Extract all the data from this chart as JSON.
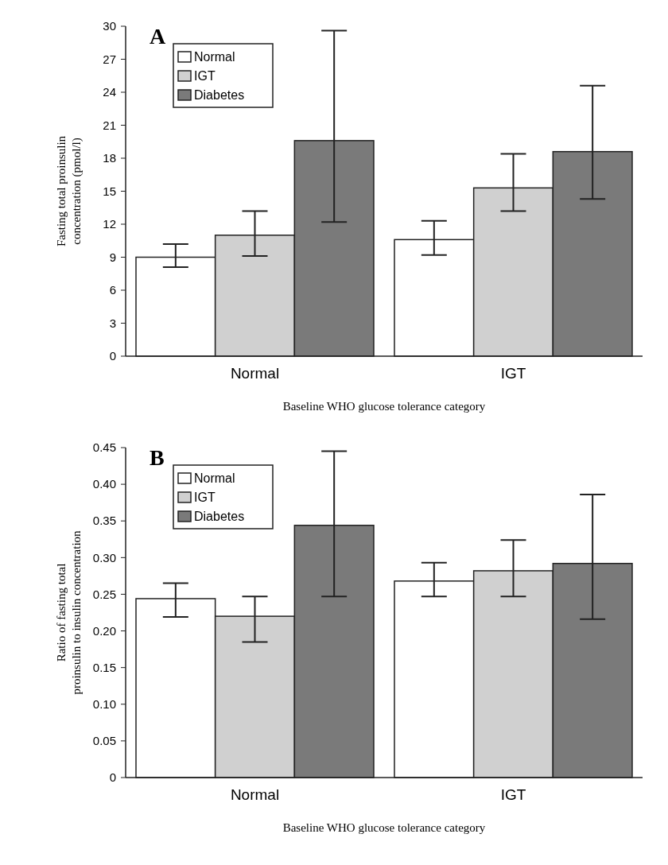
{
  "chart_data": [
    {
      "type": "bar",
      "annotations": [
        "A"
      ],
      "xlabel": "Baseline WHO glucose tolerance category",
      "ylabel": "Fasting total proinsulin concentration (pmol/l)",
      "categories": [
        "Normal",
        "IGT"
      ],
      "ylim": [
        0,
        30
      ],
      "yticks": [
        0,
        3,
        6,
        9,
        12,
        15,
        18,
        21,
        24,
        27,
        30
      ],
      "grid": false,
      "legend": "top left",
      "series": [
        {
          "name": "Normal",
          "color": "#ffffff",
          "values": [
            9.0,
            10.6
          ],
          "errors": [
            [
              8.1,
              10.2
            ],
            [
              9.2,
              12.3
            ]
          ]
        },
        {
          "name": "IGT",
          "color": "#d0d0d0",
          "values": [
            11.0,
            15.3
          ],
          "errors": [
            [
              9.1,
              13.2
            ],
            [
              13.2,
              18.4
            ]
          ]
        },
        {
          "name": "Diabetes",
          "color": "#7a7a7a",
          "values": [
            19.6,
            18.6
          ],
          "errors": [
            [
              12.2,
              29.6
            ],
            [
              14.3,
              24.6
            ]
          ]
        }
      ]
    },
    {
      "type": "bar",
      "annotations": [
        "B"
      ],
      "xlabel": "Baseline WHO glucose tolerance category",
      "ylabel": "Ratio of fasting total proinsulin to insulin concentration",
      "categories": [
        "Normal",
        "IGT"
      ],
      "ylim": [
        0,
        0.45
      ],
      "yticks": [
        {
          "value": 0,
          "label": "0"
        },
        {
          "value": 0.05,
          "label": "0.05"
        },
        {
          "value": 0.1,
          "label": "0.10"
        },
        {
          "value": 0.15,
          "label": "0.15"
        },
        {
          "value": 0.2,
          "label": "0.20"
        },
        {
          "value": 0.25,
          "label": "0.25"
        },
        {
          "value": 0.3,
          "label": "0.30"
        },
        {
          "value": 0.35,
          "label": "0.35"
        },
        {
          "value": 0.4,
          "label": "0.40"
        },
        {
          "value": 0.45,
          "label": "0.45"
        }
      ],
      "grid": false,
      "legend": "top left",
      "series": [
        {
          "name": "Normal",
          "color": "#ffffff",
          "values": [
            0.244,
            0.268
          ],
          "errors": [
            [
              0.219,
              0.265
            ],
            [
              0.247,
              0.293
            ]
          ]
        },
        {
          "name": "IGT",
          "color": "#d0d0d0",
          "values": [
            0.22,
            0.282
          ],
          "errors": [
            [
              0.185,
              0.247
            ],
            [
              0.247,
              0.324
            ]
          ]
        },
        {
          "name": "Diabetes",
          "color": "#7a7a7a",
          "values": [
            0.344,
            0.292
          ],
          "errors": [
            [
              0.247,
              0.445
            ],
            [
              0.216,
              0.386
            ]
          ]
        }
      ]
    }
  ]
}
